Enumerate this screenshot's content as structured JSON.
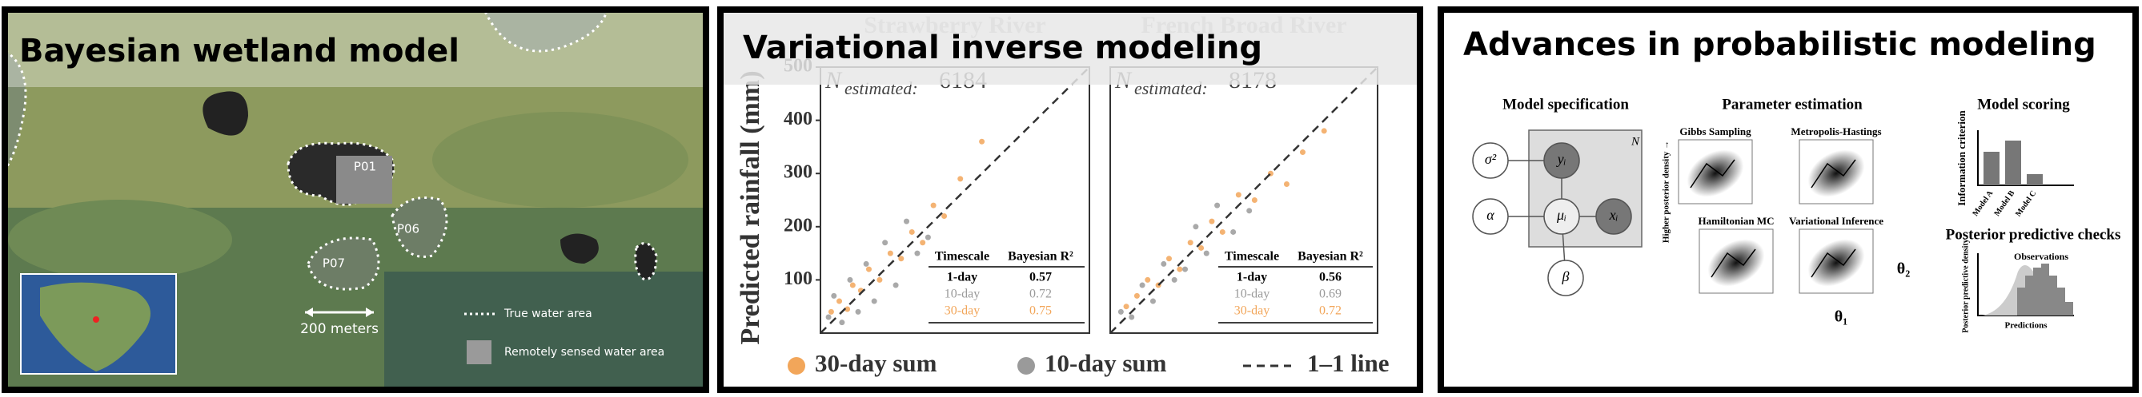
{
  "wetland_panel": {
    "title": "Bayesian wetland model",
    "sites": [
      "P01",
      "P06",
      "P07"
    ],
    "scale_label": "200 meters",
    "legend": [
      "True water area",
      "Remotely sensed water area"
    ]
  },
  "inverse_panel": {
    "title": "Variational inverse modeling",
    "y_label": "Predicted rainfall (mm)",
    "reference_line": "1–1 line"
  },
  "chart_data": [
    {
      "type": "scatter",
      "title": "Strawberry River",
      "n_label": "N",
      "n_subscript": "estimated:",
      "n_value": 6184,
      "xlim": [
        0,
        500
      ],
      "ylim": [
        0,
        500
      ],
      "yticks": [
        100,
        200,
        300,
        400,
        500
      ],
      "series": [
        {
          "name": "30-day sum",
          "color": "#f2a65a",
          "x": [
            20,
            35,
            50,
            60,
            75,
            90,
            110,
            130,
            150,
            170,
            190,
            210,
            230,
            260,
            300
          ],
          "y": [
            40,
            60,
            45,
            90,
            80,
            120,
            100,
            150,
            140,
            190,
            170,
            240,
            220,
            290,
            360
          ]
        },
        {
          "name": "10-day sum",
          "color": "#9a9a9a",
          "x": [
            15,
            25,
            40,
            55,
            70,
            85,
            100,
            120,
            140,
            160,
            180,
            200
          ],
          "y": [
            30,
            70,
            20,
            100,
            40,
            130,
            60,
            170,
            90,
            210,
            150,
            180
          ]
        }
      ],
      "table": {
        "headers": [
          "Timescale",
          "Bayesian R²"
        ],
        "rows": [
          [
            "1-day",
            0.57
          ],
          [
            "10-day",
            0.72
          ],
          [
            "30-day",
            0.75
          ]
        ]
      }
    },
    {
      "type": "scatter",
      "title": "French Broad River",
      "n_label": "N",
      "n_subscript": "estimated:",
      "n_value": 8178,
      "xlim": [
        0,
        500
      ],
      "ylim": [
        0,
        500
      ],
      "series": [
        {
          "name": "30-day sum",
          "color": "#f2a65a",
          "x": [
            30,
            50,
            70,
            90,
            110,
            130,
            150,
            170,
            190,
            210,
            240,
            270,
            300,
            330,
            360,
            400
          ],
          "y": [
            50,
            70,
            100,
            90,
            140,
            120,
            170,
            160,
            210,
            190,
            260,
            250,
            300,
            280,
            340,
            380
          ]
        },
        {
          "name": "10-day sum",
          "color": "#9a9a9a",
          "x": [
            20,
            40,
            60,
            80,
            100,
            120,
            140,
            160,
            180,
            200,
            230,
            260
          ],
          "y": [
            40,
            30,
            90,
            60,
            130,
            100,
            120,
            200,
            150,
            240,
            190,
            230
          ]
        }
      ],
      "table": {
        "headers": [
          "Timescale",
          "Bayesian R²"
        ],
        "rows": [
          [
            "1-day",
            0.56
          ],
          [
            "10-day",
            0.69
          ],
          [
            "30-day",
            0.72
          ]
        ]
      }
    }
  ],
  "probabilistic_panel": {
    "title": "Advances in probabilistic modeling",
    "sections": [
      "Model specification",
      "Parameter estimation",
      "Model scoring",
      "Posterior predictive checks"
    ],
    "nodes": [
      "σ²",
      "α",
      "β",
      "yᵢ",
      "μᵢ",
      "xᵢ"
    ],
    "plate": "N",
    "samplers": [
      "Gibbs Sampling",
      "Metropolis-Hastings",
      "Hamiltonian MC",
      "Variational Inference"
    ],
    "density_label": "Higher posterior density →",
    "theta_axes": [
      "θ₂",
      "θ₁"
    ],
    "score_label": "Information criterion",
    "models": [
      "Model A",
      "Model B",
      "Model C"
    ],
    "ppc_y_label": "Posterior predictive density",
    "ppc_labels": [
      "Observations",
      "Predictions"
    ]
  }
}
